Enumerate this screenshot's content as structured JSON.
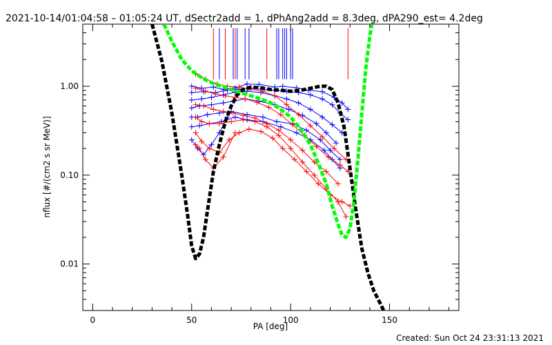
{
  "chart_data": {
    "type": "line",
    "title": "2021-10-14/01:04:58 – 01:05:24 UT, dSectr2add = 1, dPhAng2add = 8.3deg, dPA290_est=  4.2deg",
    "xlabel": "PA [deg]",
    "ylabel": "nflux [#/(cm2 s sr MeV)]",
    "xlim": [
      -5,
      185
    ],
    "ylim": [
      0.003,
      5.0
    ],
    "yscale": "log",
    "xticks": [
      0,
      50,
      100,
      150
    ],
    "xtick_labels": [
      "0",
      "50",
      "100",
      "150"
    ],
    "yticks": [
      0.01,
      0.1,
      1.0
    ],
    "ytick_labels": [
      "0.01",
      "0.10",
      "1.00"
    ],
    "grid": false,
    "footer": "Created: Sun Oct 24 23:31:13 2021",
    "colors": {
      "blue": "#0000ff",
      "red": "#ff0000",
      "black": "#000000",
      "green": "#00ff00"
    },
    "marker_lines": {
      "blue": [
        64,
        71,
        73,
        77,
        79,
        93,
        94,
        96,
        97,
        98,
        100,
        101
      ],
      "red": [
        61,
        67,
        72,
        79,
        88,
        129
      ],
      "top": 4.5,
      "bottom": 1.2
    },
    "series": [
      {
        "color": "blue",
        "x": [
          50,
          55,
          61,
          66,
          72,
          78,
          84,
          92,
          96,
          103,
          109,
          116,
          122,
          126,
          129
        ],
        "y": [
          1.0,
          0.95,
          0.98,
          0.92,
          0.96,
          1.06,
          1.05,
          0.98,
          1.0,
          0.96,
          0.9,
          0.87,
          0.75,
          0.65,
          0.55
        ]
      },
      {
        "color": "blue",
        "x": [
          50,
          56,
          62,
          68,
          74,
          80,
          86,
          92,
          98,
          104,
          110,
          116,
          121,
          125,
          129
        ],
        "y": [
          0.85,
          0.87,
          0.85,
          0.9,
          0.93,
          0.95,
          0.92,
          0.9,
          0.88,
          0.85,
          0.8,
          0.72,
          0.62,
          0.5,
          0.42
        ]
      },
      {
        "color": "blue",
        "x": [
          50,
          55,
          60,
          66,
          72,
          78,
          85,
          92,
          98,
          104,
          110,
          116,
          121,
          126
        ],
        "y": [
          0.7,
          0.72,
          0.75,
          0.8,
          0.86,
          0.88,
          0.85,
          0.78,
          0.72,
          0.65,
          0.55,
          0.45,
          0.37,
          0.3
        ]
      },
      {
        "color": "blue",
        "x": [
          50,
          54,
          60,
          66,
          71,
          77,
          84,
          92,
          99,
          106,
          113,
          118,
          123
        ],
        "y": [
          0.57,
          0.6,
          0.62,
          0.65,
          0.68,
          0.72,
          0.68,
          0.62,
          0.55,
          0.47,
          0.38,
          0.3,
          0.23
        ]
      },
      {
        "color": "blue",
        "x": [
          50,
          53,
          58,
          64,
          70,
          78,
          86,
          93,
          101,
          108,
          115,
          120,
          125
        ],
        "y": [
          0.45,
          0.45,
          0.48,
          0.5,
          0.52,
          0.48,
          0.45,
          0.4,
          0.38,
          0.32,
          0.25,
          0.19,
          0.15
        ]
      },
      {
        "color": "blue",
        "x": [
          50,
          54,
          59,
          65,
          72,
          78,
          86,
          95,
          103,
          110,
          117,
          121,
          125
        ],
        "y": [
          0.35,
          0.36,
          0.38,
          0.4,
          0.45,
          0.42,
          0.4,
          0.35,
          0.3,
          0.25,
          0.19,
          0.15,
          0.12
        ]
      },
      {
        "color": "blue",
        "x": [
          50,
          53,
          56,
          60,
          64,
          68
        ],
        "y": [
          0.25,
          0.2,
          0.17,
          0.22,
          0.3,
          0.45
        ]
      },
      {
        "color": "red",
        "x": [
          52,
          57,
          63,
          68,
          74,
          79,
          86,
          92,
          98,
          104,
          110,
          116,
          122,
          128
        ],
        "y": [
          1.38,
          1.2,
          1.06,
          1.0,
          0.98,
          0.93,
          0.88,
          0.78,
          0.62,
          0.48,
          0.36,
          0.27,
          0.2,
          0.15
        ]
      },
      {
        "color": "red",
        "x": [
          52,
          57,
          62,
          67,
          72,
          77,
          83,
          89,
          95,
          101,
          107,
          113,
          119,
          125,
          129
        ],
        "y": [
          0.95,
          0.88,
          0.82,
          0.78,
          0.75,
          0.72,
          0.66,
          0.58,
          0.48,
          0.37,
          0.28,
          0.21,
          0.16,
          0.13,
          0.11
        ]
      },
      {
        "color": "red",
        "x": [
          52,
          56,
          61,
          66,
          71,
          76,
          82,
          88,
          94,
          100,
          106,
          112,
          118,
          124
        ],
        "y": [
          0.62,
          0.6,
          0.55,
          0.52,
          0.5,
          0.47,
          0.44,
          0.38,
          0.32,
          0.25,
          0.19,
          0.14,
          0.11,
          0.08
        ]
      },
      {
        "color": "red",
        "x": [
          52,
          55,
          59,
          64,
          70,
          76,
          82,
          88,
          94,
          100,
          106,
          112,
          118,
          124,
          128
        ],
        "y": [
          0.45,
          0.4,
          0.38,
          0.38,
          0.4,
          0.42,
          0.4,
          0.35,
          0.28,
          0.2,
          0.14,
          0.1,
          0.07,
          0.05,
          0.034
        ]
      },
      {
        "color": "red",
        "x": [
          52,
          55,
          59,
          64,
          69,
          74,
          79,
          85,
          91,
          96,
          102,
          108,
          114,
          120,
          126,
          130
        ],
        "y": [
          0.3,
          0.24,
          0.2,
          0.18,
          0.25,
          0.3,
          0.33,
          0.31,
          0.26,
          0.2,
          0.15,
          0.11,
          0.08,
          0.06,
          0.05,
          0.045
        ]
      },
      {
        "color": "red",
        "x": [
          52,
          54,
          57,
          61,
          66,
          72
        ],
        "y": [
          0.22,
          0.2,
          0.15,
          0.12,
          0.16,
          0.3
        ]
      }
    ],
    "fits": [
      {
        "color": "black",
        "points": [
          [
            30,
            5.0
          ],
          [
            35,
            1.9
          ],
          [
            40,
            0.5
          ],
          [
            45,
            0.1
          ],
          [
            48,
            0.035
          ],
          [
            50,
            0.016
          ],
          [
            52,
            0.0115
          ],
          [
            54,
            0.013
          ],
          [
            56,
            0.02
          ],
          [
            58,
            0.04
          ],
          [
            61,
            0.11
          ],
          [
            64,
            0.22
          ],
          [
            67,
            0.4
          ],
          [
            70,
            0.6
          ],
          [
            73,
            0.8
          ],
          [
            76,
            0.92
          ],
          [
            80,
            0.98
          ],
          [
            85,
            0.96
          ],
          [
            90,
            0.92
          ],
          [
            95,
            0.9
          ],
          [
            100,
            0.88
          ],
          [
            105,
            0.9
          ],
          [
            110,
            0.95
          ],
          [
            115,
            1.0
          ],
          [
            118,
            1.0
          ],
          [
            121,
            0.92
          ],
          [
            124,
            0.65
          ],
          [
            127,
            0.35
          ],
          [
            130,
            0.12
          ],
          [
            133,
            0.04
          ],
          [
            136,
            0.015
          ],
          [
            139,
            0.008
          ],
          [
            142,
            0.005
          ],
          [
            145,
            0.0037
          ],
          [
            147,
            0.003
          ]
        ]
      },
      {
        "color": "green",
        "points": [
          [
            36,
            5.0
          ],
          [
            40,
            3.2
          ],
          [
            45,
            2.0
          ],
          [
            50,
            1.5
          ],
          [
            55,
            1.25
          ],
          [
            60,
            1.1
          ],
          [
            65,
            1.0
          ],
          [
            70,
            0.92
          ],
          [
            75,
            0.85
          ],
          [
            80,
            0.78
          ],
          [
            85,
            0.72
          ],
          [
            90,
            0.65
          ],
          [
            95,
            0.55
          ],
          [
            100,
            0.45
          ],
          [
            105,
            0.33
          ],
          [
            110,
            0.22
          ],
          [
            115,
            0.12
          ],
          [
            118,
            0.08
          ],
          [
            121,
            0.045
          ],
          [
            124,
            0.028
          ],
          [
            126,
            0.021
          ],
          [
            128,
            0.02
          ],
          [
            130,
            0.025
          ],
          [
            132,
            0.05
          ],
          [
            134,
            0.15
          ],
          [
            136,
            0.5
          ],
          [
            138,
            1.6
          ],
          [
            140,
            3.6
          ],
          [
            141,
            5.0
          ]
        ]
      }
    ]
  }
}
